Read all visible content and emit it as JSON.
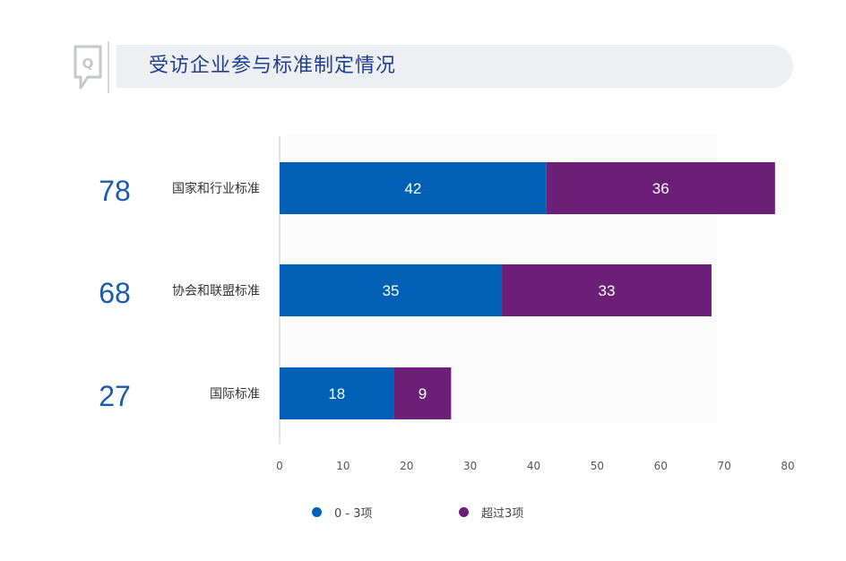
{
  "header": {
    "title": "受访企业参与标准制定情况",
    "icon": "q-speech-bubble-icon"
  },
  "legend": [
    {
      "label": "0 - 3项",
      "color": "#0060b5"
    },
    {
      "label": "超过3项",
      "color": "#6b1f76"
    }
  ],
  "chart_data": {
    "type": "bar",
    "orientation": "horizontal",
    "stacked": true,
    "title": "受访企业参与标准制定情况",
    "categories": [
      "国家和行业标准",
      "协会和联盟标准",
      "国际标准"
    ],
    "totals": [
      78,
      68,
      27
    ],
    "series": [
      {
        "name": "0 - 3项",
        "values": [
          42,
          35,
          18
        ],
        "color": "#0060b5"
      },
      {
        "name": "超过3项",
        "values": [
          36,
          33,
          9
        ],
        "color": "#6b1f76"
      }
    ],
    "xlim": [
      0,
      80
    ],
    "xticks": [
      0,
      10,
      20,
      30,
      40,
      50,
      60,
      70,
      80
    ],
    "total_color": "#1a5bab",
    "legend_position": "bottom"
  }
}
